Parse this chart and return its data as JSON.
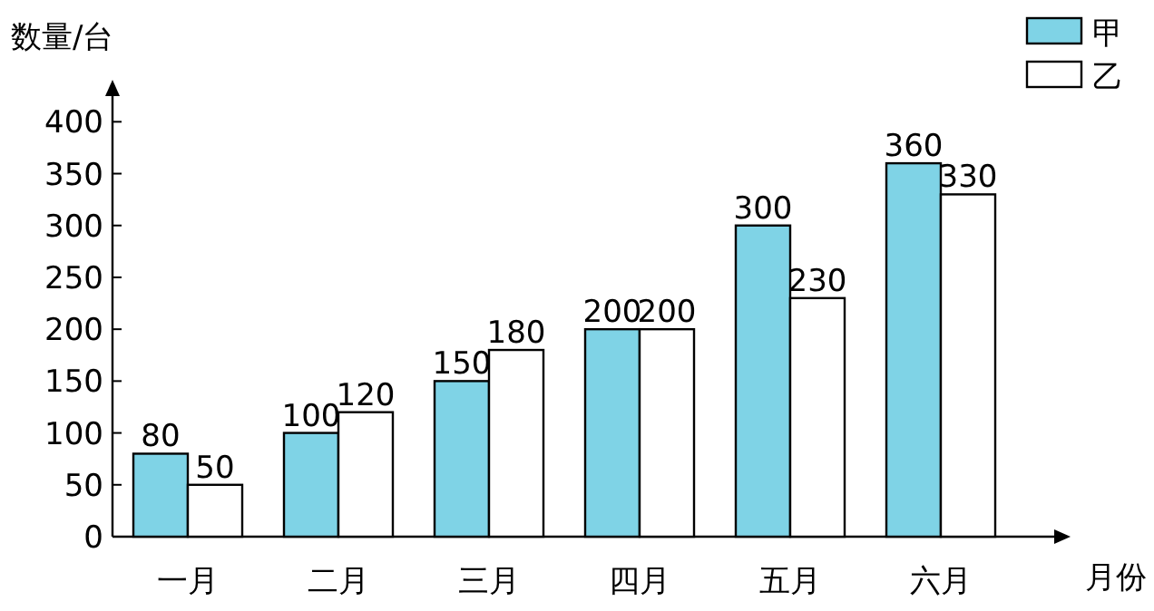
{
  "chart_data": {
    "type": "bar",
    "ylabel": "数量/台",
    "xlabel": "月份",
    "categories": [
      "一月",
      "二月",
      "三月",
      "四月",
      "五月",
      "六月"
    ],
    "series": [
      {
        "name": "甲",
        "color": "#7fd3e6",
        "values": [
          80,
          100,
          150,
          200,
          300,
          360
        ]
      },
      {
        "name": "乙",
        "color": "#ffffff",
        "values": [
          50,
          120,
          180,
          200,
          230,
          330
        ]
      }
    ],
    "ylim": [
      0,
      430
    ],
    "yticks": [
      0,
      50,
      100,
      150,
      200,
      250,
      300,
      350,
      400
    ],
    "data_labels": true,
    "legend": "top right",
    "grid": false
  }
}
